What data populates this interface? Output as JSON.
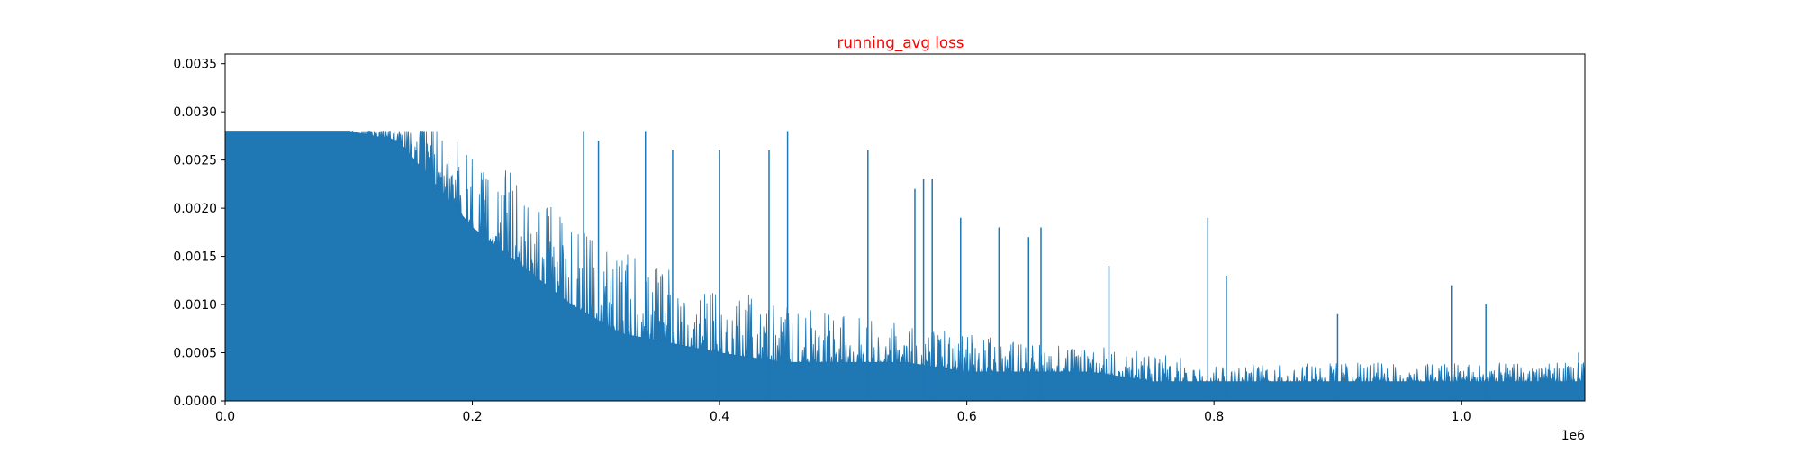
{
  "chart_data": {
    "type": "line",
    "title": "running_avg loss",
    "title_color": "#ff0000",
    "series_color": "#1f77b4",
    "xlabel": "",
    "ylabel": "",
    "xlim": [
      0,
      1100000
    ],
    "ylim": [
      0,
      0.0036
    ],
    "grid": false,
    "x_offset_label": "1e6",
    "x_tick_labels": [
      "0.0",
      "0.2",
      "0.4",
      "0.6",
      "0.8",
      "1.0"
    ],
    "x_tick_values": [
      0,
      200000,
      400000,
      600000,
      800000,
      1000000
    ],
    "y_tick_labels": [
      "0.0000",
      "0.0005",
      "0.0010",
      "0.0015",
      "0.0020",
      "0.0025",
      "0.0030",
      "0.0035"
    ],
    "y_tick_values": [
      0,
      0.0005,
      0.001,
      0.0015,
      0.002,
      0.0025,
      0.003,
      0.0035
    ],
    "envelope_x": [
      0,
      100000,
      140000,
      160000,
      180000,
      200000,
      240000,
      280000,
      320000,
      360000,
      400000,
      450000,
      500000,
      550000,
      600000,
      650000,
      700000,
      750000,
      800000,
      850000,
      900000,
      950000,
      1000000,
      1050000,
      1100000
    ],
    "envelope_floor": [
      0.0028,
      0.0028,
      0.0027,
      0.0024,
      0.0021,
      0.0018,
      0.0014,
      0.001,
      0.0007,
      0.0006,
      0.0005,
      0.0004,
      0.0004,
      0.0004,
      0.0003,
      0.0003,
      0.0003,
      0.0002,
      0.0002,
      0.0002,
      0.0002,
      0.0002,
      0.0002,
      0.0002,
      0.0002
    ],
    "envelope_noise": [
      0,
      0.0001,
      0.0004,
      0.0006,
      0.0007,
      0.0008,
      0.0009,
      0.0009,
      0.0009,
      0.0008,
      0.0007,
      0.0006,
      0.0005,
      0.0004,
      0.0004,
      0.0003,
      0.0003,
      0.0003,
      0.0002,
      0.0002,
      0.0002,
      0.0002,
      0.0002,
      0.0002,
      0.0002
    ],
    "spikes": [
      {
        "x": 290000,
        "y": 0.0028
      },
      {
        "x": 302000,
        "y": 0.0027
      },
      {
        "x": 340000,
        "y": 0.0028
      },
      {
        "x": 362000,
        "y": 0.0026
      },
      {
        "x": 400000,
        "y": 0.0026
      },
      {
        "x": 440000,
        "y": 0.0026
      },
      {
        "x": 455000,
        "y": 0.0028
      },
      {
        "x": 520000,
        "y": 0.0026
      },
      {
        "x": 558000,
        "y": 0.0022
      },
      {
        "x": 565000,
        "y": 0.0023
      },
      {
        "x": 572000,
        "y": 0.0023
      },
      {
        "x": 595000,
        "y": 0.0019
      },
      {
        "x": 626000,
        "y": 0.0018
      },
      {
        "x": 650000,
        "y": 0.0017
      },
      {
        "x": 660000,
        "y": 0.0018
      },
      {
        "x": 715000,
        "y": 0.0014
      },
      {
        "x": 795000,
        "y": 0.0019
      },
      {
        "x": 810000,
        "y": 0.0013
      },
      {
        "x": 900000,
        "y": 0.0009
      },
      {
        "x": 992000,
        "y": 0.0012
      },
      {
        "x": 1020000,
        "y": 0.001
      },
      {
        "x": 1095000,
        "y": 0.0005
      }
    ]
  }
}
